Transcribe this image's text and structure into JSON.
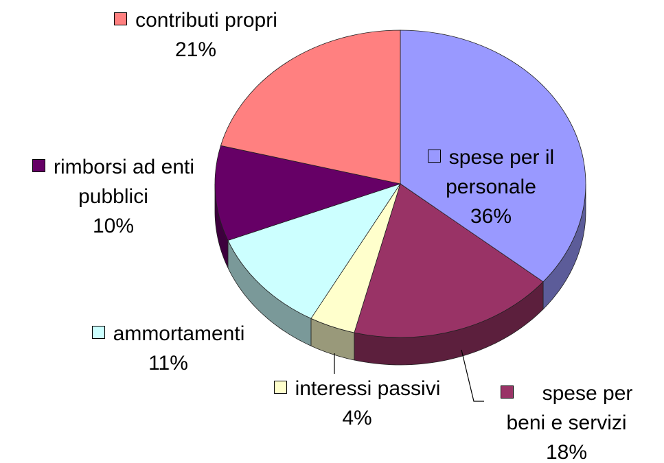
{
  "chart_data": {
    "type": "pie",
    "categories": [
      "spese per il personale",
      "spese per beni e servizi",
      "interessi passivi",
      "ammortamenti",
      "rimborsi ad enti pubblici",
      "contributi propri"
    ],
    "values": [
      36,
      18,
      4,
      11,
      10,
      21
    ],
    "value_labels": [
      "36%",
      "18%",
      "4%",
      "11%",
      "10%",
      "21%"
    ],
    "colors": [
      "#9999ff",
      "#993366",
      "#ffffcc",
      "#ccffff",
      "#660066",
      "#ff8080"
    ]
  }
}
